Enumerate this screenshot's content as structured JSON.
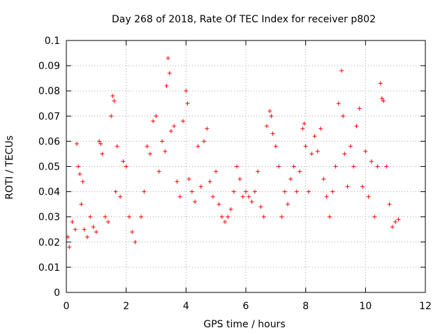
{
  "chart_data": {
    "type": "scatter",
    "title": "Day 268 of 2018, Rate Of TEC Index for receiver p802",
    "xlabel": "GPS time / hours",
    "ylabel": "ROTI / TECUs",
    "xlim": [
      0,
      12
    ],
    "ylim": [
      0,
      0.1
    ],
    "x_ticks": [
      0,
      2,
      4,
      6,
      8,
      10,
      12
    ],
    "x_tick_labels": [
      "0",
      "2",
      "4",
      "6",
      "8",
      "10",
      "12"
    ],
    "y_ticks": [
      0,
      0.01,
      0.02,
      0.03,
      0.04,
      0.05,
      0.06,
      0.07,
      0.08,
      0.09,
      0.1
    ],
    "y_tick_labels": [
      "0",
      "0.01",
      "0.02",
      "0.03",
      "0.04",
      "0.05",
      "0.06",
      "0.07",
      "0.08",
      "0.09",
      "0.1"
    ],
    "grid": true,
    "marker": "+",
    "color": "#ff0000",
    "series": [
      {
        "name": "ROTI",
        "x": [
          0.05,
          0.1,
          0.2,
          0.3,
          0.35,
          0.4,
          0.45,
          0.5,
          0.55,
          0.6,
          0.7,
          0.8,
          0.9,
          1.0,
          1.1,
          1.15,
          1.2,
          1.3,
          1.4,
          1.5,
          1.55,
          1.6,
          1.65,
          1.7,
          1.8,
          1.9,
          2.0,
          2.1,
          2.2,
          2.3,
          2.5,
          2.6,
          2.7,
          2.8,
          2.9,
          3.0,
          3.1,
          3.2,
          3.3,
          3.35,
          3.4,
          3.45,
          3.5,
          3.6,
          3.7,
          3.8,
          3.9,
          4.0,
          4.05,
          4.1,
          4.2,
          4.3,
          4.4,
          4.5,
          4.6,
          4.7,
          4.8,
          4.9,
          5.0,
          5.1,
          5.2,
          5.3,
          5.4,
          5.5,
          5.6,
          5.7,
          5.8,
          5.9,
          6.0,
          6.1,
          6.2,
          6.3,
          6.4,
          6.5,
          6.6,
          6.7,
          6.8,
          6.85,
          6.9,
          7.0,
          7.1,
          7.2,
          7.3,
          7.4,
          7.5,
          7.6,
          7.7,
          7.8,
          7.9,
          7.95,
          8.0,
          8.1,
          8.2,
          8.3,
          8.4,
          8.5,
          8.6,
          8.7,
          8.8,
          8.9,
          9.0,
          9.1,
          9.2,
          9.25,
          9.3,
          9.4,
          9.5,
          9.6,
          9.7,
          9.8,
          9.9,
          10.0,
          10.1,
          10.2,
          10.3,
          10.4,
          10.5,
          10.55,
          10.6,
          10.7,
          10.8,
          10.9,
          11.0,
          11.1
        ],
        "y": [
          0.022,
          0.018,
          0.028,
          0.025,
          0.059,
          0.05,
          0.047,
          0.035,
          0.044,
          0.025,
          0.022,
          0.03,
          0.026,
          0.024,
          0.06,
          0.059,
          0.055,
          0.03,
          0.028,
          0.07,
          0.078,
          0.076,
          0.04,
          0.058,
          0.038,
          0.052,
          0.05,
          0.03,
          0.024,
          0.02,
          0.03,
          0.04,
          0.058,
          0.055,
          0.068,
          0.07,
          0.048,
          0.06,
          0.056,
          0.082,
          0.093,
          0.087,
          0.064,
          0.066,
          0.044,
          0.038,
          0.068,
          0.08,
          0.075,
          0.045,
          0.04,
          0.036,
          0.058,
          0.042,
          0.06,
          0.065,
          0.044,
          0.038,
          0.048,
          0.035,
          0.03,
          0.028,
          0.03,
          0.033,
          0.04,
          0.05,
          0.045,
          0.038,
          0.04,
          0.038,
          0.036,
          0.04,
          0.048,
          0.034,
          0.03,
          0.066,
          0.072,
          0.07,
          0.063,
          0.058,
          0.05,
          0.03,
          0.04,
          0.035,
          0.045,
          0.05,
          0.04,
          0.048,
          0.065,
          0.067,
          0.058,
          0.04,
          0.055,
          0.062,
          0.056,
          0.065,
          0.045,
          0.038,
          0.03,
          0.04,
          0.05,
          0.075,
          0.088,
          0.07,
          0.055,
          0.042,
          0.058,
          0.05,
          0.066,
          0.073,
          0.042,
          0.056,
          0.038,
          0.052,
          0.03,
          0.05,
          0.083,
          0.077,
          0.076,
          0.05,
          0.035,
          0.026,
          0.028,
          0.029
        ]
      }
    ]
  }
}
